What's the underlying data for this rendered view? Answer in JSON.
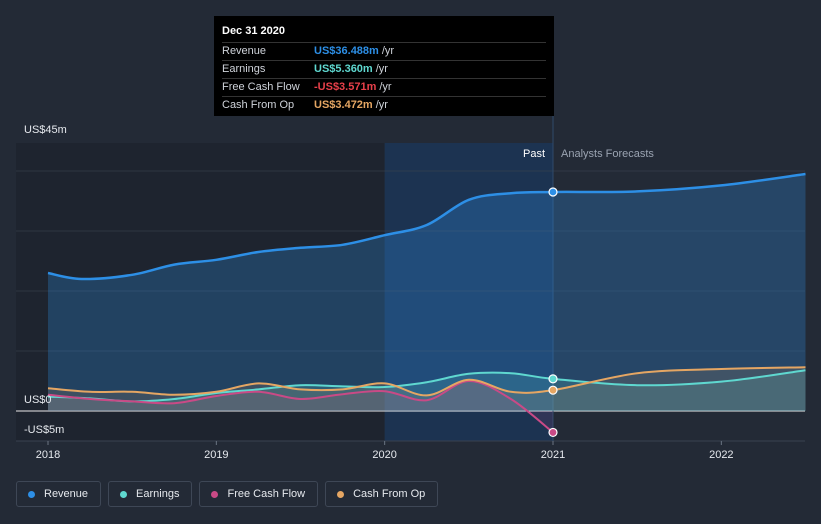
{
  "chart_data": {
    "type": "area",
    "title": "",
    "y_axis": {
      "top_label": "US$45m",
      "zero_label": "US$0",
      "bottom_label": "-US$5m",
      "ylim": [
        -5,
        45
      ]
    },
    "x_axis": {
      "ticks": [
        "2018",
        "2019",
        "2020",
        "2021",
        "2022"
      ],
      "xlim": [
        2018,
        2022.5
      ]
    },
    "sections": {
      "past_label": "Past",
      "forecast_label": "Analysts Forecasts",
      "divider_x": 2021.0
    },
    "series": [
      {
        "name": "Revenue",
        "color": "#2d8fe6",
        "x": [
          2018.0,
          2018.2,
          2018.5,
          2018.75,
          2019.0,
          2019.25,
          2019.5,
          2019.75,
          2020.0,
          2020.25,
          2020.5,
          2020.75,
          2021.0,
          2021.5,
          2022.0,
          2022.5
        ],
        "values": [
          23.0,
          22.0,
          22.7,
          24.4,
          25.2,
          26.5,
          27.2,
          27.7,
          29.3,
          31.0,
          35.2,
          36.3,
          36.5,
          36.6,
          37.6,
          39.5
        ]
      },
      {
        "name": "Earnings",
        "color": "#5fd8d0",
        "x": [
          2018.0,
          2018.25,
          2018.5,
          2018.75,
          2019.0,
          2019.25,
          2019.5,
          2019.75,
          2020.0,
          2020.25,
          2020.5,
          2020.75,
          2021.0,
          2021.5,
          2022.0,
          2022.5
        ],
        "values": [
          2.4,
          2.1,
          1.6,
          2.0,
          3.0,
          3.6,
          4.3,
          4.1,
          4.0,
          4.8,
          6.2,
          6.3,
          5.36,
          4.3,
          4.9,
          6.8
        ]
      },
      {
        "name": "Free Cash Flow",
        "color": "#c94a86",
        "x": [
          2018.0,
          2018.25,
          2018.5,
          2018.75,
          2019.0,
          2019.25,
          2019.5,
          2019.75,
          2020.0,
          2020.25,
          2020.5,
          2020.75,
          2021.0
        ],
        "values": [
          2.7,
          2.0,
          1.6,
          1.3,
          2.5,
          3.2,
          2.0,
          2.8,
          3.3,
          1.8,
          5.0,
          2.0,
          -3.571
        ]
      },
      {
        "name": "Cash From Op",
        "color": "#e5a663",
        "x": [
          2018.0,
          2018.25,
          2018.5,
          2018.75,
          2019.0,
          2019.25,
          2019.5,
          2019.75,
          2020.0,
          2020.25,
          2020.5,
          2020.75,
          2021.0,
          2021.5,
          2022.0,
          2022.5
        ],
        "values": [
          3.8,
          3.2,
          3.2,
          2.7,
          3.2,
          4.6,
          3.6,
          3.6,
          4.6,
          2.6,
          5.2,
          3.2,
          3.472,
          6.3,
          7.0,
          7.3
        ]
      }
    ],
    "highlight": {
      "x": 2021.0
    }
  },
  "tooltip": {
    "date": "Dec 31 2020",
    "rows": [
      {
        "label": "Revenue",
        "value": "US$36.488m",
        "unit": "/yr",
        "color": "#2d8fe6"
      },
      {
        "label": "Earnings",
        "value": "US$5.360m",
        "unit": "/yr",
        "color": "#5fd8d0"
      },
      {
        "label": "Free Cash Flow",
        "value": "-US$3.571m",
        "unit": "/yr",
        "color": "#e8404a"
      },
      {
        "label": "Cash From Op",
        "value": "US$3.472m",
        "unit": "/yr",
        "color": "#e5a663"
      }
    ]
  },
  "legend": [
    {
      "label": "Revenue",
      "color": "#2d8fe6"
    },
    {
      "label": "Earnings",
      "color": "#5fd8d0"
    },
    {
      "label": "Free Cash Flow",
      "color": "#c94a86"
    },
    {
      "label": "Cash From Op",
      "color": "#e5a663"
    }
  ]
}
